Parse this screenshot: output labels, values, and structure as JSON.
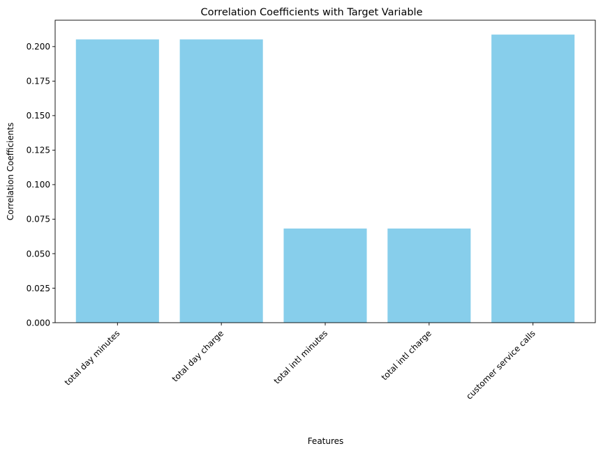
{
  "chart_data": {
    "type": "bar",
    "title": "Correlation Coefficients with Target Variable",
    "xlabel": "Features",
    "ylabel": "Correlation Coefficients",
    "categories": [
      "total day minutes",
      "total day charge",
      "total intl minutes",
      "total intl charge",
      "customer service calls"
    ],
    "values": [
      0.2052,
      0.2052,
      0.0682,
      0.0682,
      0.2087
    ],
    "ylim": [
      0,
      0.2191
    ],
    "yticks": [
      "0.000",
      "0.025",
      "0.050",
      "0.075",
      "0.100",
      "0.125",
      "0.150",
      "0.175",
      "0.200"
    ],
    "bar_color": "#87ceeb",
    "grid": false,
    "legend": "none"
  }
}
